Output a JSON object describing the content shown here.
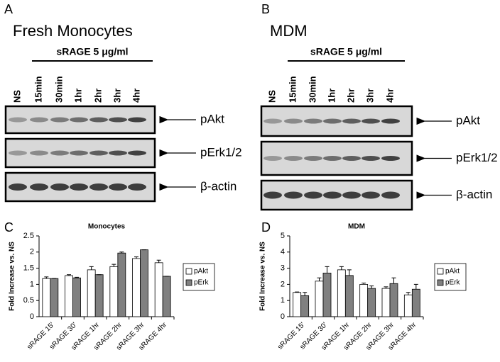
{
  "panels": [
    {
      "letter": "A",
      "title": "Fresh Monocytes",
      "treatment": "sRAGE 5 μg/ml",
      "lanes": [
        "NS",
        "15min",
        "30min",
        "1hr",
        "2hr",
        "3hr",
        "4hr"
      ],
      "blots": [
        "pAkt",
        "pErk1/2",
        "β-actin"
      ]
    },
    {
      "letter": "B",
      "title": "MDM",
      "treatment": "sRAGE 5 μg/ml",
      "lanes": [
        "NS",
        "15min",
        "30min",
        "1hr",
        "2hr",
        "3hr",
        "4hr"
      ],
      "blots": [
        "pAkt",
        "pErk1/2",
        "β-actin"
      ]
    }
  ],
  "chart_data": [
    {
      "type": "bar",
      "panel_label": "C",
      "title": "Monocytes",
      "y_label": "Fold Increase vs. NS",
      "categories": [
        "sRAGE 15'",
        "sRAGE 30'",
        "sRAGE 1hr",
        "sRAGE 2hr",
        "sRAGE 3hr",
        "sRAGE 4hr"
      ],
      "series": [
        {
          "name": "pAkt",
          "color": "#ffffff",
          "values": [
            1.18,
            1.27,
            1.45,
            1.55,
            1.8,
            1.67
          ],
          "errors": [
            0.05,
            0.03,
            0.1,
            0.07,
            0.05,
            0.08
          ]
        },
        {
          "name": "pErk",
          "color": "#808080",
          "values": [
            1.18,
            1.2,
            1.3,
            1.97,
            2.07,
            1.25
          ],
          "errors": [
            0,
            0.02,
            0,
            0.03,
            0,
            0
          ]
        }
      ],
      "ylim": [
        0,
        2.5
      ],
      "yticks": [
        0,
        0.5,
        1,
        1.5,
        2,
        2.5
      ],
      "legend": "right"
    },
    {
      "type": "bar",
      "panel_label": "D",
      "title": "MDM",
      "y_label": "Fold Increase vs. NS",
      "categories": [
        "sRAGE 15'",
        "sRAGE 30'",
        "sRAGE 1hr",
        "sRAGE 2hr",
        "sRAGE 3hr",
        "sRAGE 4hr"
      ],
      "series": [
        {
          "name": "pAkt",
          "color": "#ffffff",
          "values": [
            1.5,
            2.2,
            2.9,
            2.0,
            1.75,
            1.35
          ],
          "errors": [
            0.03,
            0.2,
            0.2,
            0.08,
            0.1,
            0.15
          ]
        },
        {
          "name": "pErk",
          "color": "#808080",
          "values": [
            1.3,
            2.7,
            2.55,
            1.75,
            2.05,
            1.7
          ],
          "errors": [
            0.2,
            0.4,
            0.35,
            0.15,
            0.35,
            0.3
          ]
        }
      ],
      "ylim": [
        0,
        5
      ],
      "yticks": [
        0,
        1,
        2,
        3,
        4,
        5
      ],
      "legend": "right"
    }
  ]
}
